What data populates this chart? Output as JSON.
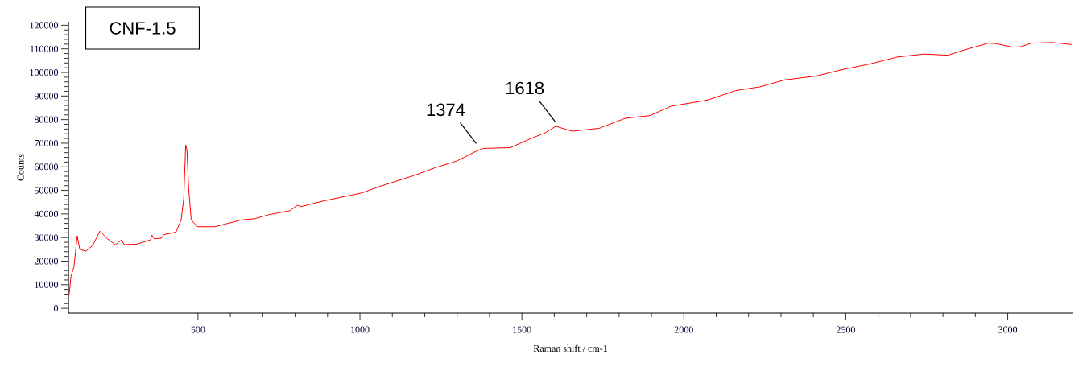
{
  "chart_data": {
    "type": "line",
    "title": "CNF-1.5",
    "xlabel": "Raman shift / cm-1",
    "ylabel": "Counts",
    "x": [
      102,
      108,
      117,
      127,
      135,
      154,
      175,
      197,
      220,
      245,
      264,
      272,
      311,
      353,
      358,
      365,
      386,
      394,
      432,
      448,
      456,
      462,
      466,
      471,
      479,
      498,
      552,
      635,
      676,
      718,
      784,
      807,
      817,
      884,
      1008,
      1049,
      1091,
      1165,
      1232,
      1298,
      1356,
      1381,
      1464,
      1530,
      1572,
      1605,
      1630,
      1655,
      1738,
      1820,
      1895,
      1961,
      2061,
      2080,
      2160,
      2235,
      2310,
      2409,
      2492,
      2575,
      2658,
      2741,
      2816,
      2865,
      2940,
      2965,
      3015,
      3040,
      3073,
      3139,
      3197
    ],
    "series": [
      {
        "color": "#ff0000",
        "values": [
          5650,
          13600,
          17600,
          30700,
          25000,
          24200,
          26700,
          32700,
          29500,
          27000,
          29000,
          27000,
          27200,
          29000,
          31000,
          29500,
          29700,
          31200,
          32300,
          37500,
          46500,
          69200,
          67000,
          51100,
          37500,
          34600,
          34600,
          37500,
          38000,
          39700,
          41400,
          43700,
          43100,
          45400,
          49000,
          51100,
          53000,
          56200,
          59600,
          62400,
          66400,
          67800,
          68100,
          72100,
          74400,
          77200,
          76100,
          75100,
          76300,
          80600,
          81700,
          85700,
          88000,
          88600,
          92300,
          93900,
          96800,
          98500,
          101300,
          103600,
          106500,
          107800,
          107300,
          109500,
          112400,
          112200,
          110700,
          110900,
          112400,
          112700,
          111800
        ]
      }
    ],
    "xlim": [
      100,
      3200
    ],
    "ylim": [
      -2000,
      121500
    ],
    "xticks": [
      500,
      1000,
      1500,
      2000,
      2500,
      3000
    ],
    "yticks": [
      0,
      10000,
      20000,
      30000,
      40000,
      50000,
      60000,
      70000,
      80000,
      90000,
      100000,
      110000,
      120000
    ],
    "annotations": [
      {
        "text": "1374",
        "x": 1374,
        "y": 67800
      },
      {
        "text": "1618",
        "x": 1618,
        "y": 77000
      }
    ]
  }
}
